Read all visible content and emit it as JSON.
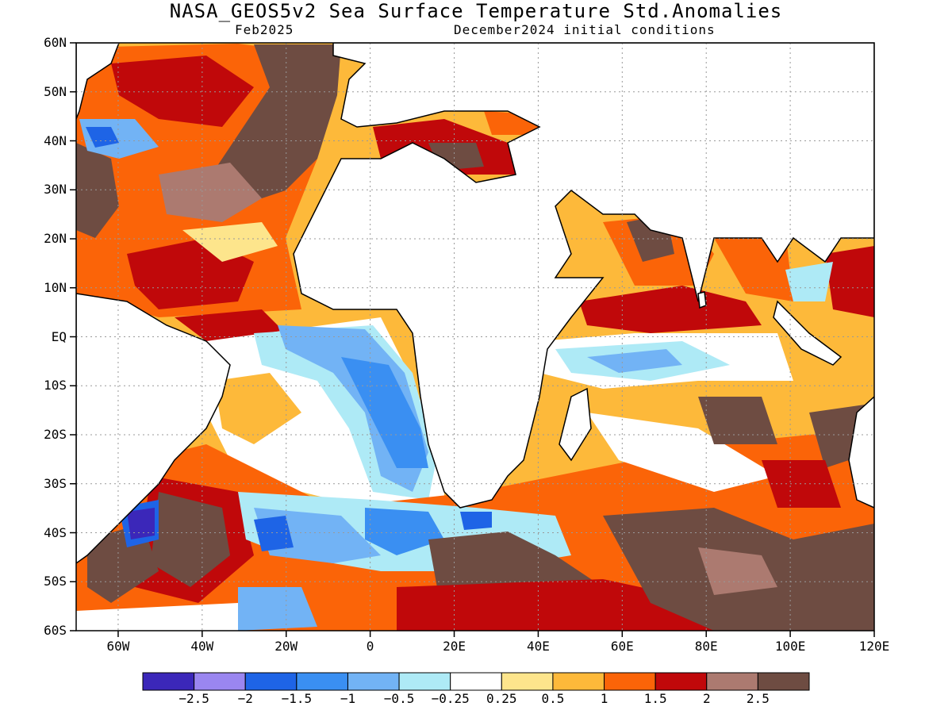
{
  "title": "NASA_GEOS5v2 Sea Surface Temperature Std.Anomalies",
  "valid_month": "Feb2025",
  "initial_conditions": "December2024 initial conditions",
  "map": {
    "lon_range": [
      -70,
      120
    ],
    "lat_range": [
      -60,
      60
    ],
    "lat_ticks": [
      "60N",
      "50N",
      "40N",
      "30N",
      "20N",
      "10N",
      "EQ",
      "10S",
      "20S",
      "30S",
      "40S",
      "50S",
      "60S"
    ],
    "lon_ticks": [
      "60W",
      "40W",
      "20W",
      "0",
      "20E",
      "40E",
      "60E",
      "80E",
      "100E",
      "120E"
    ],
    "grid": true,
    "land_color": "#ffffff"
  },
  "colorbar": {
    "colors": [
      "#3b27b9",
      "#9a86f0",
      "#1e64e6",
      "#3a8ff2",
      "#72b3f5",
      "#aeeaf6",
      "#ffffff",
      "#fde58c",
      "#fdb93a",
      "#fb6408",
      "#c0080a",
      "#ac7a70",
      "#6e4c42"
    ],
    "labels": [
      "-2.5",
      "-2",
      "-1.5",
      "-1",
      "-0.5",
      "-0.25",
      "0.25",
      "0.5",
      "1",
      "1.5",
      "2",
      "2.5"
    ]
  }
}
